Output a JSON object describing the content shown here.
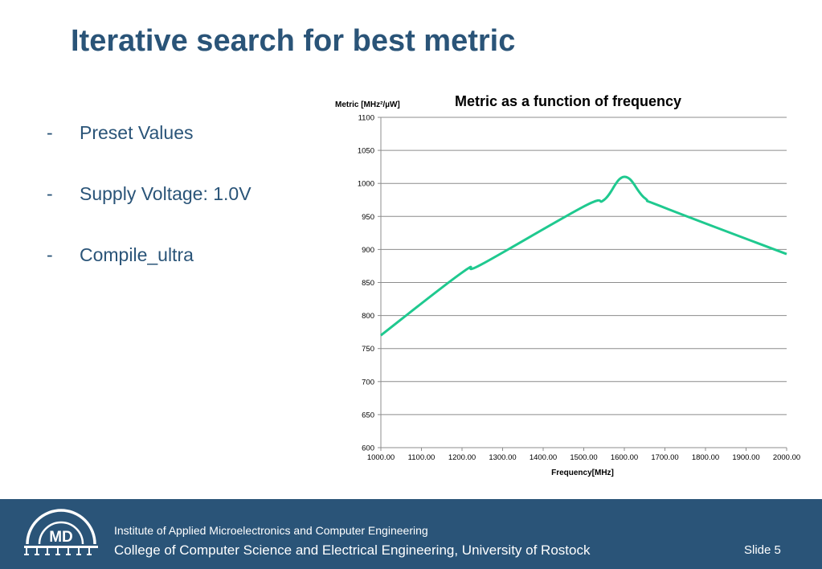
{
  "slide": {
    "title": "Iterative search for best metric",
    "bullets": [
      {
        "marker": "-",
        "text": "Preset Values"
      },
      {
        "marker": "-",
        "text": "Supply Voltage: 1.0V"
      },
      {
        "marker": "-",
        "text": "Compile_ultra"
      }
    ]
  },
  "footer": {
    "logo_text": "MD",
    "institute": "Institute of Applied Microelectronics and Computer Engineering",
    "college": "College of Computer Science and Electrical Engineering, University of Rostock",
    "slide_number": "Slide 5"
  },
  "colors": {
    "brand": "#2a5478",
    "series": "#1fc98f",
    "gridline": "#8c8c8c"
  },
  "chart_data": {
    "type": "line",
    "title": "Metric as a function of frequency",
    "xlabel": "Frequency[MHz]",
    "ylabel": "Metric [MHz²/µW]",
    "xlim": [
      1000,
      2000
    ],
    "ylim": [
      600,
      1100
    ],
    "x_ticks": [
      "1000.00",
      "1100.00",
      "1200.00",
      "1300.00",
      "1400.00",
      "1500.00",
      "1600.00",
      "1700.00",
      "1800.00",
      "1900.00",
      "2000.00"
    ],
    "y_ticks": [
      "600",
      "650",
      "700",
      "750",
      "800",
      "850",
      "900",
      "950",
      "1000",
      "1050",
      "1100"
    ],
    "grid": true,
    "series": [
      {
        "x": [
          1000,
          1200,
          1250,
          1500,
          1550,
          1600,
          1650,
          1700,
          2000
        ],
        "y": [
          770,
          865,
          878,
          965,
          975,
          1010,
          978,
          963,
          893
        ]
      }
    ]
  }
}
